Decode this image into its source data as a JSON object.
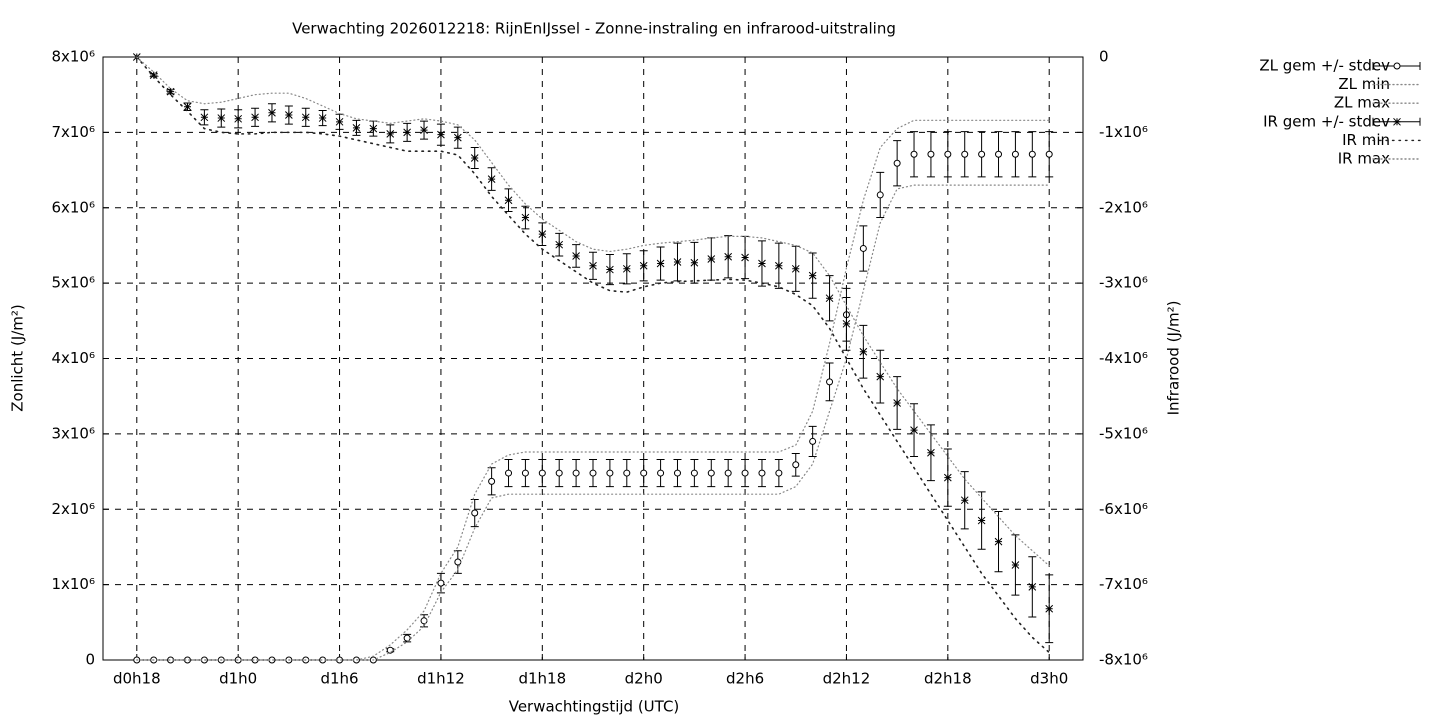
{
  "chart_data": {
    "type": "errorbar",
    "title": "Verwachting 2026012218: RijnEnIJssel - Zonne-instraling en infrarood-uitstraling",
    "xlabel": "Verwachtingstijd (UTC)",
    "ylabel": "Zonlicht (J/m²)",
    "y2label": "Infrarood (J/m²)",
    "xlim": [
      16,
      74
    ],
    "xticks": [
      {
        "value": 18,
        "label": "d0h18"
      },
      {
        "value": 24,
        "label": "d1h0"
      },
      {
        "value": 30,
        "label": "d1h6"
      },
      {
        "value": 36,
        "label": "d1h12"
      },
      {
        "value": 42,
        "label": "d1h18"
      },
      {
        "value": 48,
        "label": "d2h0"
      },
      {
        "value": 54,
        "label": "d2h6"
      },
      {
        "value": 60,
        "label": "d2h12"
      },
      {
        "value": 66,
        "label": "d2h18"
      },
      {
        "value": 72,
        "label": "d3h0"
      }
    ],
    "ylim": [
      0,
      8000000.0
    ],
    "yticks": [
      0,
      {
        "value": 1000000.0,
        "label": "1x10⁶"
      },
      {
        "value": 2000000.0,
        "label": "2x10⁶"
      },
      {
        "value": 3000000.0,
        "label": "3x10⁶"
      },
      {
        "value": 4000000.0,
        "label": "4x10⁶"
      },
      {
        "value": 5000000.0,
        "label": "5x10⁶"
      },
      {
        "value": 6000000.0,
        "label": "6x10⁶"
      },
      {
        "value": 7000000.0,
        "label": "7x10⁶"
      },
      {
        "value": 8000000.0,
        "label": "8x10⁶"
      }
    ],
    "y2lim": [
      -8000000.0,
      0
    ],
    "y2ticks": [
      {
        "value": -8000000.0,
        "label": "-8x10⁶"
      },
      {
        "value": -7000000.0,
        "label": "-7x10⁶"
      },
      {
        "value": -6000000.0,
        "label": "-6x10⁶"
      },
      {
        "value": -5000000.0,
        "label": "-5x10⁶"
      },
      {
        "value": -4000000.0,
        "label": "-4x10⁶"
      },
      {
        "value": -3000000.0,
        "label": "-3x10⁶"
      },
      {
        "value": -2000000.0,
        "label": "-2x10⁶"
      },
      {
        "value": -1000000.0,
        "label": "-1x10⁶"
      },
      0
    ],
    "grid": true,
    "legend": "right",
    "x": [
      18,
      19,
      20,
      21,
      22,
      23,
      24,
      25,
      26,
      27,
      28,
      29,
      30,
      31,
      32,
      33,
      34,
      35,
      36,
      37,
      38,
      39,
      40,
      41,
      42,
      43,
      44,
      45,
      46,
      47,
      48,
      49,
      50,
      51,
      52,
      53,
      54,
      55,
      56,
      57,
      58,
      59,
      60,
      61,
      62,
      63,
      64,
      65,
      66,
      67,
      68,
      69,
      70,
      71,
      72
    ],
    "series": [
      {
        "name": "ZL gem +/- stdev",
        "color": "#000000",
        "marker": "circle",
        "axis": "y",
        "values": [
          0,
          0,
          0,
          0,
          0,
          0,
          0,
          0,
          0,
          0,
          0,
          0,
          0,
          0,
          0,
          130000.0,
          290000.0,
          520000.0,
          1020000.0,
          1300000.0,
          1950000.0,
          2370000.0,
          2480000.0,
          2480000.0,
          2480000.0,
          2480000.0,
          2480000.0,
          2480000.0,
          2480000.0,
          2480000.0,
          2480000.0,
          2480000.0,
          2480000.0,
          2480000.0,
          2480000.0,
          2480000.0,
          2480000.0,
          2480000.0,
          2480000.0,
          2590000.0,
          2900000.0,
          3690000.0,
          4580000.0,
          5460000.0,
          6170000.0,
          6590000.0,
          6710000.0,
          6710000.0,
          6710000.0,
          6710000.0,
          6710000.0,
          6710000.0,
          6710000.0,
          6710000.0,
          6710000.0
        ],
        "errors": [
          0,
          0,
          0,
          0,
          0,
          0,
          0,
          0,
          0,
          0,
          0,
          0,
          0,
          0,
          0,
          20000.0,
          50000.0,
          80000.0,
          130000.0,
          150000.0,
          180000.0,
          180000.0,
          180000.0,
          180000.0,
          180000.0,
          180000.0,
          180000.0,
          180000.0,
          180000.0,
          180000.0,
          180000.0,
          180000.0,
          180000.0,
          180000.0,
          180000.0,
          180000.0,
          180000.0,
          180000.0,
          180000.0,
          150000.0,
          200000.0,
          250000.0,
          350000.0,
          300000.0,
          300000.0,
          300000.0,
          300000.0,
          300000.0,
          300000.0,
          300000.0,
          300000.0,
          300000.0,
          300000.0,
          300000.0,
          300000.0
        ]
      },
      {
        "name": "ZL min",
        "color": "#888888",
        "dash": "1 3",
        "axis": "y",
        "values": [
          0,
          0,
          0,
          0,
          0,
          0,
          0,
          0,
          0,
          0,
          0,
          0,
          0,
          0,
          0,
          100000.0,
          240000.0,
          450000.0,
          900000.0,
          1200000.0,
          1750000.0,
          2150000.0,
          2200000.0,
          2200000.0,
          2200000.0,
          2200000.0,
          2200000.0,
          2200000.0,
          2200000.0,
          2200000.0,
          2200000.0,
          2200000.0,
          2200000.0,
          2200000.0,
          2200000.0,
          2200000.0,
          2200000.0,
          2200000.0,
          2200000.0,
          2300000.0,
          2600000.0,
          3300000.0,
          4000000.0,
          4900000.0,
          5800000.0,
          6250000.0,
          6300000.0,
          6300000.0,
          6300000.0,
          6300000.0,
          6300000.0,
          6300000.0,
          6300000.0,
          6300000.0,
          6300000.0
        ]
      },
      {
        "name": "ZL max",
        "color": "#888888",
        "dash": "1 3",
        "axis": "y",
        "values": [
          0,
          0,
          0,
          0,
          0,
          0,
          0,
          0,
          0,
          0,
          0,
          0,
          0,
          0,
          50000.0,
          200000.0,
          400000.0,
          650000.0,
          1150000.0,
          1500000.0,
          2200000.0,
          2600000.0,
          2720000.0,
          2760000.0,
          2760000.0,
          2760000.0,
          2760000.0,
          2760000.0,
          2760000.0,
          2760000.0,
          2760000.0,
          2760000.0,
          2760000.0,
          2760000.0,
          2760000.0,
          2760000.0,
          2760000.0,
          2760000.0,
          2760000.0,
          2850000.0,
          3300000.0,
          4200000.0,
          5200000.0,
          6100000.0,
          6800000.0,
          7050000.0,
          7160000.0,
          7160000.0,
          7160000.0,
          7160000.0,
          7160000.0,
          7160000.0,
          7160000.0,
          7160000.0,
          7160000.0
        ]
      },
      {
        "name": "IR gem +/- stdev",
        "color": "#000000",
        "marker": "asterisk",
        "axis": "y2",
        "values": [
          0,
          -240000.0,
          -460000.0,
          -660000.0,
          -800000.0,
          -810000.0,
          -820000.0,
          -800000.0,
          -740000.0,
          -770000.0,
          -800000.0,
          -810000.0,
          -860000.0,
          -940000.0,
          -950000.0,
          -1020000.0,
          -1000000.0,
          -970000.0,
          -1030000.0,
          -1070000.0,
          -1340000.0,
          -1620000.0,
          -1900000.0,
          -2130000.0,
          -2350000.0,
          -2490000.0,
          -2640000.0,
          -2770000.0,
          -2820000.0,
          -2810000.0,
          -2770000.0,
          -2740000.0,
          -2720000.0,
          -2730000.0,
          -2680000.0,
          -2650000.0,
          -2660000.0,
          -2740000.0,
          -2770000.0,
          -2810000.0,
          -2900000.0,
          -3200000.0,
          -3540000.0,
          -3910000.0,
          -4240000.0,
          -4590000.0,
          -4950000.0,
          -5250000.0,
          -5580000.0,
          -5880000.0,
          -6150000.0,
          -6430000.0,
          -6740000.0,
          -7030000.0,
          -7320000.0
        ],
        "errors": [
          0,
          20000.0,
          30000.0,
          50000.0,
          100000.0,
          120000.0,
          120000.0,
          120000.0,
          120000.0,
          120000.0,
          120000.0,
          100000.0,
          100000.0,
          100000.0,
          100000.0,
          120000.0,
          120000.0,
          120000.0,
          140000.0,
          140000.0,
          140000.0,
          150000.0,
          150000.0,
          150000.0,
          150000.0,
          150000.0,
          150000.0,
          180000.0,
          200000.0,
          200000.0,
          200000.0,
          220000.0,
          250000.0,
          270000.0,
          280000.0,
          280000.0,
          280000.0,
          300000.0,
          300000.0,
          300000.0,
          300000.0,
          300000.0,
          350000.0,
          350000.0,
          350000.0,
          350000.0,
          350000.0,
          370000.0,
          380000.0,
          380000.0,
          380000.0,
          400000.0,
          400000.0,
          400000.0,
          450000.0
        ]
      },
      {
        "name": "IR min",
        "color": "#222222",
        "dash": "1.5 5",
        "axis": "y2",
        "values": [
          0,
          -260000.0,
          -500000.0,
          -720000.0,
          -950000.0,
          -1000000.0,
          -1020000.0,
          -1020000.0,
          -1000000.0,
          -1000000.0,
          -1000000.0,
          -1020000.0,
          -1050000.0,
          -1100000.0,
          -1150000.0,
          -1200000.0,
          -1250000.0,
          -1250000.0,
          -1250000.0,
          -1300000.0,
          -1550000.0,
          -1850000.0,
          -2100000.0,
          -2350000.0,
          -2550000.0,
          -2700000.0,
          -2850000.0,
          -3000000.0,
          -3100000.0,
          -3120000.0,
          -3050000.0,
          -3000000.0,
          -2980000.0,
          -2970000.0,
          -2960000.0,
          -2950000.0,
          -2960000.0,
          -3000000.0,
          -3050000.0,
          -3150000.0,
          -3300000.0,
          -3600000.0,
          -4000000.0,
          -4400000.0,
          -4750000.0,
          -5100000.0,
          -5450000.0,
          -5800000.0,
          -6150000.0,
          -6500000.0,
          -6850000.0,
          -7150000.0,
          -7450000.0,
          -7700000.0,
          -7900000.0
        ]
      },
      {
        "name": "IR max",
        "color": "#888888",
        "dash": "1 3",
        "axis": "y2",
        "values": [
          0,
          -200000.0,
          -420000.0,
          -580000.0,
          -620000.0,
          -600000.0,
          -550000.0,
          -500000.0,
          -480000.0,
          -480000.0,
          -550000.0,
          -650000.0,
          -750000.0,
          -820000.0,
          -850000.0,
          -880000.0,
          -850000.0,
          -820000.0,
          -850000.0,
          -900000.0,
          -1100000.0,
          -1400000.0,
          -1700000.0,
          -1950000.0,
          -2150000.0,
          -2300000.0,
          -2450000.0,
          -2550000.0,
          -2580000.0,
          -2550000.0,
          -2500000.0,
          -2470000.0,
          -2450000.0,
          -2430000.0,
          -2400000.0,
          -2380000.0,
          -2380000.0,
          -2400000.0,
          -2450000.0,
          -2500000.0,
          -2600000.0,
          -2900000.0,
          -3300000.0,
          -3700000.0,
          -4050000.0,
          -4400000.0,
          -4700000.0,
          -5000000.0,
          -5300000.0,
          -5600000.0,
          -5850000.0,
          -6100000.0,
          -6350000.0,
          -6550000.0,
          -6750000.0
        ]
      }
    ]
  }
}
